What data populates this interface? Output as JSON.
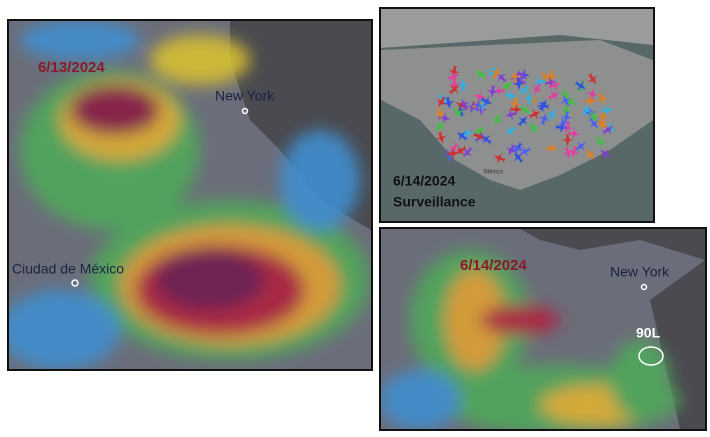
{
  "panels": [
    {
      "date": "6/13/2024",
      "labels": [
        "New York",
        "Ciudad de México"
      ]
    },
    {
      "date": "6/14/2024",
      "caption": "Surveillance",
      "labels": [
        "México"
      ]
    },
    {
      "date": "6/14/2024",
      "labels": [
        "New York",
        "90L"
      ]
    }
  ]
}
